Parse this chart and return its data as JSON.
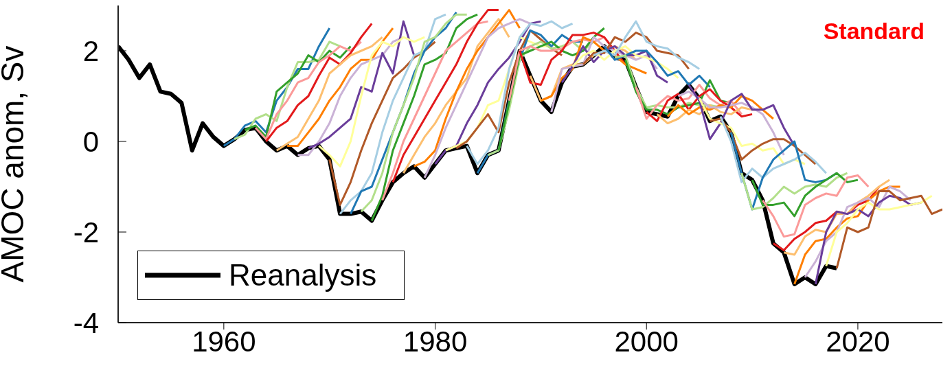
{
  "chart_data": {
    "type": "line",
    "ylabel": "AMOC anom, Sv",
    "annotations": [
      "Standard"
    ],
    "xlim": [
      1950,
      2028
    ],
    "xticks": [
      1960,
      1980,
      2000,
      2020
    ],
    "ylim": [
      -4,
      3
    ],
    "yticks": [
      -4,
      -2,
      0,
      2
    ],
    "grid": false,
    "legend": "bottom left",
    "marker": "none",
    "line_style": "solid",
    "series": [
      {
        "name": "Reanalysis",
        "color": "#000000",
        "x": [
          1950,
          1951,
          1952,
          1953,
          1954,
          1955,
          1956,
          1957,
          1958,
          1959,
          1960,
          1961,
          1962,
          1963,
          1964,
          1965,
          1966,
          1967,
          1968,
          1969,
          1970,
          1971,
          1972,
          1973,
          1974,
          1975,
          1976,
          1977,
          1978,
          1979,
          1980,
          1981,
          1982,
          1983,
          1984,
          1985,
          1986,
          1987,
          1988,
          1989,
          1990,
          1991,
          1992,
          1993,
          1994,
          1995,
          1996,
          1997,
          1998,
          1999,
          2000,
          2001,
          2002,
          2003,
          2004,
          2005,
          2006,
          2007,
          2008,
          2009,
          2010,
          2011,
          2012,
          2013,
          2014,
          2015,
          2016,
          2017,
          2018
        ],
        "values": [
          2.1,
          1.8,
          1.4,
          1.7,
          1.1,
          1.05,
          0.85,
          -0.2,
          0.4,
          0.1,
          -0.1,
          0.05,
          0.25,
          0.3,
          0.0,
          -0.2,
          -0.1,
          -0.3,
          -0.15,
          -0.1,
          -0.4,
          -1.6,
          -1.6,
          -1.55,
          -1.75,
          -1.3,
          -0.9,
          -0.7,
          -0.55,
          -0.8,
          -0.5,
          -0.2,
          -0.15,
          -0.1,
          -0.7,
          -0.3,
          -0.2,
          0.9,
          2.0,
          1.45,
          0.9,
          0.65,
          1.3,
          1.65,
          1.7,
          1.9,
          2.1,
          1.85,
          1.8,
          1.2,
          0.65,
          0.6,
          0.55,
          1.0,
          1.25,
          0.95,
          0.45,
          0.55,
          0.2,
          -0.7,
          -0.85,
          -1.3,
          -2.25,
          -2.45,
          -3.15,
          -3.0,
          -3.15,
          -2.75,
          -2.8
        ]
      },
      {
        "color": "#1f78b4",
        "x": [
          1960,
          1961,
          1962,
          1963,
          1964,
          1965,
          1966,
          1967,
          1968,
          1969,
          1970
        ],
        "values": [
          -0.1,
          0.05,
          0.35,
          0.45,
          0.2,
          0.9,
          1.2,
          1.6,
          1.6,
          2.1,
          2.5
        ]
      },
      {
        "color": "#b2df8a",
        "x": [
          1961,
          1962,
          1963,
          1964,
          1965,
          1966,
          1967,
          1968,
          1969,
          1970,
          1971
        ],
        "values": [
          0.05,
          0.15,
          0.5,
          0.6,
          0.45,
          1.2,
          1.75,
          1.75,
          1.8,
          2.2,
          2.1
        ]
      },
      {
        "color": "#33a02c",
        "x": [
          1962,
          1963,
          1964,
          1965,
          1966,
          1967,
          1968,
          1969,
          1970,
          1971,
          1972
        ],
        "values": [
          0.25,
          0.35,
          0.1,
          1.1,
          1.3,
          1.5,
          1.9,
          1.75,
          2.0,
          1.85,
          2.1
        ]
      },
      {
        "color": "#fb9a99",
        "x": [
          1963,
          1964,
          1965,
          1966,
          1967,
          1968,
          1969,
          1970,
          1971,
          1972,
          1973
        ],
        "values": [
          0.3,
          0.05,
          0.6,
          0.9,
          1.3,
          1.4,
          1.75,
          1.9,
          2.1,
          2.0,
          2.2
        ]
      },
      {
        "color": "#e31a1c",
        "x": [
          1964,
          1965,
          1966,
          1967,
          1968,
          1969,
          1970,
          1971,
          1972,
          1973,
          1974
        ],
        "values": [
          0.0,
          0.3,
          0.45,
          0.8,
          1.0,
          1.45,
          1.85,
          1.7,
          1.95,
          2.3,
          2.6
        ]
      },
      {
        "color": "#fdbf6f",
        "x": [
          1965,
          1966,
          1967,
          1968,
          1969,
          1970,
          1971,
          1972,
          1973,
          1974,
          1975
        ],
        "values": [
          -0.2,
          -0.05,
          0.1,
          0.5,
          0.9,
          1.5,
          1.7,
          1.9,
          2.0,
          2.1,
          2.3
        ]
      },
      {
        "color": "#ff7f00",
        "x": [
          1966,
          1967,
          1968,
          1969,
          1970,
          1971,
          1972,
          1973,
          1974,
          1975,
          1976
        ],
        "values": [
          -0.1,
          -0.1,
          0.2,
          0.5,
          0.9,
          1.2,
          1.6,
          1.8,
          1.8,
          2.2,
          2.5
        ]
      },
      {
        "color": "#cab2d6",
        "x": [
          1967,
          1968,
          1969,
          1970,
          1971,
          1972,
          1973,
          1974,
          1975,
          1976,
          1977
        ],
        "values": [
          -0.3,
          -0.3,
          0.0,
          0.4,
          1.0,
          1.4,
          1.7,
          1.8,
          1.9,
          2.2,
          2.3
        ]
      },
      {
        "color": "#6a3d9a",
        "x": [
          1968,
          1969,
          1970,
          1971,
          1972,
          1973,
          1974,
          1975,
          1976,
          1977,
          1978
        ],
        "values": [
          -0.15,
          -0.05,
          0.1,
          0.3,
          0.5,
          1.2,
          1.1,
          1.95,
          1.5,
          2.65,
          1.9
        ]
      },
      {
        "color": "#ffff99",
        "x": [
          1969,
          1970,
          1971,
          1972,
          1973,
          1974,
          1975,
          1976,
          1977,
          1978,
          1979
        ],
        "values": [
          -0.1,
          -0.3,
          -0.55,
          0.0,
          1.0,
          1.9,
          2.2,
          2.1,
          2.3,
          2.2,
          2.3
        ]
      },
      {
        "color": "#b15928",
        "x": [
          1970,
          1971,
          1972,
          1973,
          1974,
          1975,
          1976,
          1977,
          1978,
          1979,
          1980
        ],
        "values": [
          -0.4,
          -1.4,
          -0.9,
          -0.2,
          0.4,
          0.9,
          1.4,
          1.6,
          1.85,
          2.0,
          2.2
        ]
      },
      {
        "color": "#a6cee3",
        "x": [
          1971,
          1972,
          1973,
          1974,
          1975,
          1976,
          1977,
          1978,
          1979,
          1980,
          1981
        ],
        "values": [
          -1.6,
          -1.3,
          -1.1,
          -0.7,
          0.2,
          0.9,
          1.4,
          1.9,
          2.0,
          2.7,
          2.8
        ]
      },
      {
        "color": "#1f78b4",
        "x": [
          1972,
          1973,
          1974,
          1975,
          1976,
          1977,
          1978,
          1979,
          1980,
          1981,
          1982
        ],
        "values": [
          -1.6,
          -1.1,
          -1.0,
          -0.4,
          0.2,
          0.8,
          1.5,
          2.0,
          2.3,
          2.5,
          2.85
        ]
      },
      {
        "color": "#b2df8a",
        "x": [
          1973,
          1974,
          1975,
          1976,
          1977,
          1978,
          1979,
          1980,
          1981,
          1982,
          1983
        ],
        "values": [
          -1.55,
          -1.3,
          -0.7,
          0.2,
          0.8,
          1.4,
          2.2,
          2.3,
          2.6,
          2.8,
          2.8
        ]
      },
      {
        "color": "#33a02c",
        "x": [
          1974,
          1975,
          1976,
          1977,
          1978,
          1979,
          1980,
          1981,
          1982,
          1983,
          1984
        ],
        "values": [
          -1.75,
          -1.2,
          -0.2,
          0.4,
          1.0,
          1.7,
          1.8,
          1.95,
          2.5,
          2.7,
          2.8
        ]
      },
      {
        "color": "#fb9a99",
        "x": [
          1975,
          1976,
          1977,
          1978,
          1979,
          1980,
          1981,
          1982,
          1983,
          1984,
          1985
        ],
        "values": [
          -1.3,
          -0.7,
          0.0,
          0.5,
          1.0,
          1.5,
          2.0,
          2.2,
          2.4,
          2.6,
          2.65
        ]
      },
      {
        "color": "#e31a1c",
        "x": [
          1976,
          1977,
          1978,
          1979,
          1980,
          1981,
          1982,
          1983,
          1984,
          1985,
          1986
        ],
        "values": [
          -0.9,
          -0.3,
          0.1,
          0.5,
          0.9,
          1.3,
          1.7,
          2.2,
          2.6,
          2.9,
          2.9
        ]
      },
      {
        "color": "#fdbf6f",
        "x": [
          1977,
          1978,
          1979,
          1980,
          1981,
          1982,
          1983,
          1984,
          1985,
          1986,
          1987
        ],
        "values": [
          -0.7,
          -0.3,
          0.1,
          0.4,
          0.8,
          1.1,
          1.4,
          2.1,
          2.4,
          2.7,
          2.3
        ]
      },
      {
        "color": "#ff7f00",
        "x": [
          1978,
          1979,
          1980,
          1981,
          1982,
          1983,
          1984,
          1985,
          1986,
          1987,
          1988
        ],
        "values": [
          -0.55,
          -0.45,
          -0.2,
          0.5,
          1.1,
          1.6,
          2.0,
          2.3,
          2.6,
          2.9,
          2.5
        ]
      },
      {
        "color": "#cab2d6",
        "x": [
          1979,
          1980,
          1981,
          1982,
          1983,
          1984,
          1985,
          1986,
          1987,
          1988,
          1989
        ],
        "values": [
          -0.8,
          -0.3,
          0.3,
          0.8,
          1.3,
          1.8,
          2.3,
          2.5,
          2.6,
          2.7,
          2.6
        ]
      },
      {
        "color": "#6a3d9a",
        "x": [
          1980,
          1981,
          1982,
          1983,
          1984,
          1985,
          1986,
          1987,
          1988,
          1989,
          1990
        ],
        "values": [
          -0.5,
          -0.2,
          -0.1,
          0.4,
          0.8,
          1.3,
          1.6,
          1.85,
          2.2,
          2.6,
          2.65
        ]
      },
      {
        "color": "#ffff99",
        "x": [
          1981,
          1982,
          1983,
          1984,
          1985,
          1986,
          1987,
          1988,
          1989,
          1990,
          1991
        ],
        "values": [
          -0.2,
          -0.1,
          0.0,
          0.3,
          0.8,
          0.9,
          1.6,
          2.3,
          2.2,
          2.1,
          2.1
        ]
      },
      {
        "color": "#b15928",
        "x": [
          1982,
          1983,
          1984,
          1985,
          1986,
          1987,
          1988,
          1989,
          1990,
          1991,
          1992
        ],
        "values": [
          -0.15,
          0.0,
          0.3,
          0.6,
          0.2,
          1.3,
          2.0,
          2.45,
          2.25,
          2.05,
          1.9
        ]
      },
      {
        "color": "#a6cee3",
        "x": [
          1983,
          1984,
          1985,
          1986,
          1987,
          1988,
          1989,
          1990,
          1991,
          1992,
          1993
        ],
        "values": [
          -0.1,
          -0.5,
          -0.2,
          0.3,
          1.6,
          2.3,
          2.6,
          2.55,
          2.65,
          2.5,
          2.6
        ]
      },
      {
        "color": "#1f78b4",
        "x": [
          1984,
          1985,
          1986,
          1987,
          1988,
          1989,
          1990,
          1991,
          1992,
          1993,
          1994
        ],
        "values": [
          -0.7,
          -0.3,
          -0.2,
          0.9,
          1.8,
          2.45,
          2.35,
          2.1,
          2.35,
          2.2,
          2.2
        ]
      },
      {
        "color": "#b2df8a",
        "x": [
          1985,
          1986,
          1987,
          1988,
          1989,
          1990,
          1991,
          1992,
          1993,
          1994,
          1995
        ],
        "values": [
          -0.3,
          -0.2,
          0.7,
          1.8,
          2.1,
          2.2,
          2.05,
          2.1,
          2.2,
          2.0,
          2.2
        ]
      },
      {
        "color": "#33a02c",
        "x": [
          1986,
          1987,
          1988,
          1989,
          1990,
          1991,
          1992,
          1993,
          1994,
          1995,
          1996
        ],
        "values": [
          -0.2,
          0.85,
          1.9,
          2.0,
          2.1,
          2.2,
          2.0,
          1.9,
          2.0,
          2.3,
          2.5
        ]
      },
      {
        "color": "#fb9a99",
        "x": [
          1987,
          1988,
          1989,
          1990,
          1991,
          1992,
          1993,
          1994,
          1995,
          1996,
          1997
        ],
        "values": [
          0.9,
          2.0,
          2.1,
          2.0,
          2.0,
          2.05,
          2.2,
          2.25,
          2.2,
          2.3,
          2.0
        ]
      },
      {
        "color": "#e31a1c",
        "x": [
          1988,
          1989,
          1990,
          1991,
          1992,
          1993,
          1994,
          1995,
          1996,
          1997,
          1998
        ],
        "values": [
          2.0,
          1.3,
          1.25,
          1.8,
          2.0,
          2.35,
          2.35,
          2.4,
          2.3,
          2.0,
          1.7
        ]
      },
      {
        "color": "#fdbf6f",
        "x": [
          1989,
          1990,
          1991,
          1992,
          1993,
          1994,
          1995,
          1996,
          1997,
          1998,
          1999
        ],
        "values": [
          1.45,
          0.9,
          1.0,
          1.6,
          1.7,
          1.7,
          1.9,
          2.0,
          2.1,
          2.0,
          1.8
        ]
      },
      {
        "color": "#ff7f00",
        "x": [
          1990,
          1991,
          1992,
          1993,
          1994,
          1995,
          1996,
          1997,
          1998,
          1999,
          2000
        ],
        "values": [
          0.9,
          1.0,
          1.4,
          1.6,
          2.3,
          2.2,
          2.0,
          1.9,
          1.7,
          1.6,
          1.5
        ]
      },
      {
        "color": "#cab2d6",
        "x": [
          1991,
          1992,
          1993,
          1994,
          1995,
          1996,
          1997,
          1998,
          1999,
          2000,
          2001
        ],
        "values": [
          0.65,
          1.6,
          1.65,
          1.7,
          2.3,
          2.1,
          2.0,
          1.9,
          1.8,
          1.9,
          1.6
        ]
      },
      {
        "color": "#6a3d9a",
        "x": [
          1992,
          1993,
          1994,
          1995,
          1996,
          1997,
          1998,
          1999,
          2000,
          2001,
          2002
        ],
        "values": [
          1.3,
          1.65,
          2.1,
          1.75,
          2.0,
          2.1,
          1.9,
          1.9,
          2.0,
          1.45,
          1.3
        ]
      },
      {
        "color": "#ffff99",
        "x": [
          1993,
          1994,
          1995,
          1996,
          1997,
          1998,
          1999,
          2000,
          2001,
          2002,
          2003
        ],
        "values": [
          1.65,
          1.9,
          2.0,
          1.8,
          2.0,
          2.1,
          1.9,
          1.85,
          1.75,
          1.6,
          1.4
        ]
      },
      {
        "color": "#b15928",
        "x": [
          1994,
          1995,
          1996,
          1997,
          1998,
          1999,
          2000,
          2001,
          2002,
          2003,
          2004
        ],
        "values": [
          1.7,
          1.95,
          1.95,
          2.3,
          2.2,
          2.4,
          2.3,
          2.0,
          1.95,
          1.9,
          1.6
        ]
      },
      {
        "color": "#a6cee3",
        "x": [
          1995,
          1996,
          1997,
          1998,
          1999,
          2000,
          2001,
          2002,
          2003,
          2004,
          2005
        ],
        "values": [
          1.9,
          2.0,
          1.9,
          2.3,
          2.65,
          2.2,
          2.1,
          2.05,
          1.85,
          1.75,
          1.6
        ]
      },
      {
        "color": "#1f78b4",
        "x": [
          1996,
          1997,
          1998,
          1999,
          2000,
          2001,
          2002,
          2003,
          2004,
          2005,
          2006
        ],
        "values": [
          2.1,
          1.8,
          1.9,
          2.0,
          2.0,
          1.75,
          1.45,
          1.55,
          1.25,
          1.45,
          1.2
        ]
      },
      {
        "color": "#b2df8a",
        "x": [
          1997,
          1998,
          1999,
          2000,
          2001,
          2002,
          2003,
          2004,
          2005,
          2006,
          2007
        ],
        "values": [
          1.85,
          1.9,
          1.2,
          0.75,
          0.8,
          0.75,
          0.75,
          0.85,
          0.8,
          0.8,
          0.75
        ]
      },
      {
        "color": "#33a02c",
        "x": [
          1998,
          1999,
          2000,
          2001,
          2002,
          2003,
          2004,
          2005,
          2006,
          2007,
          2008
        ],
        "values": [
          1.8,
          1.1,
          0.7,
          0.7,
          0.6,
          0.75,
          0.8,
          0.85,
          1.35,
          0.9,
          0.85
        ]
      },
      {
        "color": "#fb9a99",
        "x": [
          1999,
          2000,
          2001,
          2002,
          2003,
          2004,
          2005,
          2006,
          2007,
          2008,
          2009
        ],
        "values": [
          1.2,
          0.5,
          0.8,
          1.0,
          0.9,
          0.95,
          1.25,
          0.95,
          0.8,
          0.9,
          0.6
        ]
      },
      {
        "color": "#e31a1c",
        "x": [
          2000,
          2001,
          2002,
          2003,
          2004,
          2005,
          2006,
          2007,
          2008,
          2009,
          2010
        ],
        "values": [
          0.65,
          0.45,
          0.9,
          1.05,
          0.7,
          1.0,
          1.15,
          0.9,
          0.75,
          0.55,
          0.6
        ]
      },
      {
        "color": "#fdbf6f",
        "x": [
          2001,
          2002,
          2003,
          2004,
          2005,
          2006,
          2007,
          2008,
          2009,
          2010,
          2011
        ],
        "values": [
          0.6,
          0.4,
          0.5,
          0.7,
          0.6,
          0.8,
          0.65,
          0.6,
          0.75,
          0.7,
          0.7
        ]
      },
      {
        "color": "#ff7f00",
        "x": [
          2002,
          2003,
          2004,
          2005,
          2006,
          2007,
          2008,
          2009,
          2010,
          2011,
          2012
        ],
        "values": [
          0.55,
          0.8,
          0.6,
          0.75,
          0.7,
          0.8,
          0.75,
          1.0,
          0.9,
          0.7,
          0.5
        ]
      },
      {
        "color": "#cab2d6",
        "x": [
          2003,
          2004,
          2005,
          2006,
          2007,
          2008,
          2009,
          2010,
          2011,
          2012,
          2013
        ],
        "values": [
          1.0,
          1.1,
          0.95,
          0.75,
          0.75,
          0.8,
          0.85,
          0.75,
          0.6,
          0.2,
          -0.3
        ]
      },
      {
        "color": "#6a3d9a",
        "x": [
          2004,
          2005,
          2006,
          2007,
          2008,
          2009,
          2010,
          2011,
          2012,
          2013,
          2014
        ],
        "values": [
          1.25,
          0.9,
          0.05,
          0.4,
          0.9,
          1.05,
          0.7,
          0.7,
          0.8,
          0.3,
          -0.1
        ]
      },
      {
        "color": "#ffff99",
        "x": [
          2005,
          2006,
          2007,
          2008,
          2009,
          2010,
          2011,
          2012,
          2013,
          2014,
          2015
        ],
        "values": [
          0.95,
          0.5,
          0.4,
          0.3,
          -0.1,
          -0.05,
          -0.2,
          -0.15,
          -0.5,
          -0.4,
          -0.5
        ]
      },
      {
        "color": "#b15928",
        "x": [
          2006,
          2007,
          2008,
          2009,
          2010,
          2011,
          2012,
          2013,
          2014,
          2015,
          2016
        ],
        "values": [
          0.45,
          0.5,
          0.2,
          -0.4,
          -0.2,
          -0.05,
          0.05,
          0.05,
          -0.1,
          -0.3,
          -0.5
        ]
      },
      {
        "color": "#a6cee3",
        "x": [
          2007,
          2008,
          2009,
          2010,
          2011,
          2012,
          2013,
          2014,
          2015,
          2016,
          2017
        ],
        "values": [
          0.55,
          0.0,
          -0.9,
          -0.6,
          -0.8,
          -0.6,
          -0.5,
          -0.4,
          -0.25,
          -0.45,
          -0.7
        ]
      },
      {
        "color": "#1f78b4",
        "x": [
          2008,
          2009,
          2010,
          2011,
          2012,
          2013,
          2014,
          2015,
          2016,
          2017,
          2018
        ],
        "values": [
          0.2,
          -0.7,
          -1.5,
          -0.8,
          -0.4,
          -0.2,
          0.0,
          -0.85,
          -0.9,
          -0.85,
          -0.7
        ]
      },
      {
        "color": "#b2df8a",
        "x": [
          2009,
          2010,
          2011,
          2012,
          2013,
          2014,
          2015,
          2016,
          2017,
          2018,
          2019
        ],
        "values": [
          -0.7,
          -1.5,
          -1.45,
          -1.25,
          -1.0,
          -1.15,
          -1.0,
          -0.95,
          -1.0,
          -0.8,
          -0.7
        ]
      },
      {
        "color": "#33a02c",
        "x": [
          2010,
          2011,
          2012,
          2013,
          2014,
          2015,
          2016,
          2017,
          2018,
          2019,
          2020
        ],
        "values": [
          -0.85,
          -1.4,
          -1.4,
          -1.35,
          -1.65,
          -1.2,
          -1.0,
          -0.85,
          -0.7,
          -0.9,
          -0.85
        ]
      },
      {
        "color": "#fb9a99",
        "x": [
          2011,
          2012,
          2013,
          2014,
          2015,
          2016,
          2017,
          2018,
          2019,
          2020,
          2021
        ],
        "values": [
          -1.3,
          -1.65,
          -2.1,
          -2.05,
          -1.4,
          -1.25,
          -1.15,
          -1.2,
          -0.8,
          -0.75,
          -1.0
        ]
      },
      {
        "color": "#e31a1c",
        "x": [
          2012,
          2013,
          2014,
          2015,
          2016,
          2017,
          2018,
          2019,
          2020,
          2021,
          2022
        ],
        "values": [
          -2.25,
          -2.4,
          -2.15,
          -2.0,
          -1.8,
          -1.75,
          -1.55,
          -1.6,
          -1.4,
          -1.3,
          -1.0
        ]
      },
      {
        "color": "#fdbf6f",
        "x": [
          2013,
          2014,
          2015,
          2016,
          2017,
          2018,
          2019,
          2020,
          2021,
          2022,
          2023
        ],
        "values": [
          -2.45,
          -2.5,
          -2.1,
          -1.95,
          -2.0,
          -1.6,
          -1.6,
          -1.35,
          -1.2,
          -1.0,
          -0.85
        ]
      },
      {
        "color": "#ff7f00",
        "x": [
          2014,
          2015,
          2016,
          2017,
          2018,
          2019,
          2020,
          2021,
          2022,
          2023,
          2024
        ],
        "values": [
          -3.15,
          -2.5,
          -2.2,
          -2.15,
          -1.9,
          -1.7,
          -1.65,
          -1.3,
          -1.1,
          -1.0,
          -1.0
        ]
      },
      {
        "color": "#cab2d6",
        "x": [
          2015,
          2016,
          2017,
          2018,
          2019,
          2020,
          2021,
          2022,
          2023,
          2024,
          2025
        ],
        "values": [
          -3.0,
          -2.65,
          -2.2,
          -2.0,
          -1.45,
          -1.35,
          -1.25,
          -1.45,
          -1.0,
          -1.1,
          -1.3
        ]
      },
      {
        "color": "#6a3d9a",
        "x": [
          2016,
          2017,
          2018,
          2019,
          2020,
          2021,
          2022,
          2023,
          2024,
          2025,
          2026
        ],
        "values": [
          -3.15,
          -2.0,
          -1.55,
          -1.6,
          -1.5,
          -1.65,
          -1.35,
          -1.2,
          -1.25,
          -1.4,
          -1.35
        ]
      },
      {
        "color": "#ffff99",
        "x": [
          2017,
          2018,
          2019,
          2020,
          2021,
          2022,
          2023,
          2024,
          2025,
          2026,
          2027
        ],
        "values": [
          -2.75,
          -2.0,
          -1.8,
          -1.5,
          -1.35,
          -1.5,
          -1.5,
          -1.45,
          -1.4,
          -1.35,
          -1.2
        ]
      },
      {
        "color": "#b15928",
        "x": [
          2018,
          2019,
          2020,
          2021,
          2022,
          2023,
          2024,
          2025,
          2026,
          2027,
          2028
        ],
        "values": [
          -2.8,
          -1.9,
          -2.0,
          -1.9,
          -1.1,
          -1.1,
          -1.3,
          -1.25,
          -1.2,
          -1.6,
          -1.5
        ]
      }
    ]
  }
}
